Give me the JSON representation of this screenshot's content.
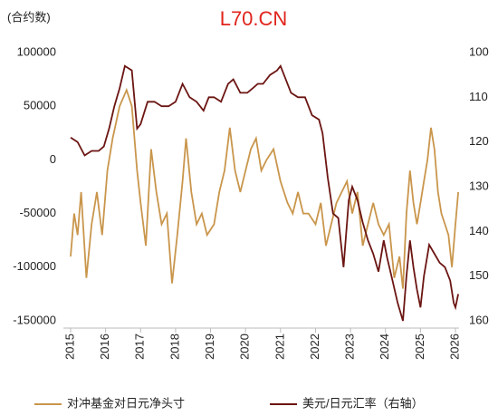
{
  "chart_data": {
    "type": "line",
    "watermark": "L70.CN",
    "y_label": "(合约数)",
    "xlim": [
      2015,
      2026.1
    ],
    "xticks": [
      2015,
      2016,
      2017,
      2018,
      2019,
      2020,
      2021,
      2022,
      2023,
      2024,
      2025,
      2026
    ],
    "ylim": [
      -150000,
      100000
    ],
    "yticks": [
      -150000,
      -100000,
      -50000,
      0,
      50000,
      100000
    ],
    "y2lim": [
      100,
      160
    ],
    "y2ticks": [
      100,
      110,
      120,
      130,
      140,
      150,
      160
    ],
    "y2_inverted": true,
    "legend": "bottom",
    "series": [
      {
        "name": "对冲基金对日元净头寸",
        "color": "#c9964c",
        "x": [
          2015.0,
          2015.1,
          2015.2,
          2015.3,
          2015.45,
          2015.6,
          2015.75,
          2015.9,
          2016.05,
          2016.2,
          2016.4,
          2016.6,
          2016.75,
          2016.9,
          2017.0,
          2017.15,
          2017.3,
          2017.45,
          2017.6,
          2017.75,
          2017.9,
          2018.05,
          2018.2,
          2018.3,
          2018.45,
          2018.6,
          2018.75,
          2018.9,
          2019.1,
          2019.25,
          2019.4,
          2019.55,
          2019.7,
          2019.85,
          2020.0,
          2020.15,
          2020.3,
          2020.45,
          2020.6,
          2020.8,
          2021.0,
          2021.2,
          2021.35,
          2021.5,
          2021.65,
          2021.8,
          2022.0,
          2022.15,
          2022.3,
          2022.45,
          2022.6,
          2022.75,
          2022.9,
          2023.05,
          2023.2,
          2023.35,
          2023.5,
          2023.65,
          2023.8,
          2023.95,
          2024.1,
          2024.25,
          2024.4,
          2024.5,
          2024.6,
          2024.7,
          2024.8,
          2024.9,
          2025.0,
          2025.1,
          2025.2,
          2025.3,
          2025.4,
          2025.5,
          2025.6,
          2025.7,
          2025.8,
          2025.9,
          2026.0,
          2026.08
        ],
        "values": [
          -90000,
          -50000,
          -70000,
          -30000,
          -110000,
          -60000,
          -30000,
          -70000,
          -10000,
          20000,
          50000,
          65000,
          50000,
          -10000,
          -40000,
          -80000,
          10000,
          -30000,
          -60000,
          -50000,
          -115000,
          -70000,
          -20000,
          20000,
          -30000,
          -60000,
          -50000,
          -70000,
          -60000,
          -30000,
          -10000,
          30000,
          -10000,
          -30000,
          -10000,
          10000,
          20000,
          -10000,
          0,
          10000,
          -20000,
          -40000,
          -50000,
          -30000,
          -50000,
          -50000,
          -60000,
          -40000,
          -80000,
          -60000,
          -40000,
          -30000,
          -20000,
          -50000,
          -30000,
          -80000,
          -60000,
          -40000,
          -60000,
          -70000,
          -60000,
          -110000,
          -90000,
          -120000,
          -50000,
          -10000,
          -40000,
          -60000,
          -40000,
          -20000,
          0,
          30000,
          10000,
          -30000,
          -50000,
          -60000,
          -70000,
          -100000,
          -60000,
          -30000
        ]
      },
      {
        "name": "美元/日元汇率（右轴）",
        "color": "#6b1512",
        "axis": "y2",
        "x": [
          2015.0,
          2015.2,
          2015.4,
          2015.6,
          2015.8,
          2015.95,
          2016.1,
          2016.25,
          2016.4,
          2016.55,
          2016.75,
          2016.9,
          2017.0,
          2017.2,
          2017.4,
          2017.6,
          2017.8,
          2018.0,
          2018.2,
          2018.4,
          2018.6,
          2018.8,
          2018.95,
          2019.1,
          2019.3,
          2019.5,
          2019.65,
          2019.85,
          2020.05,
          2020.2,
          2020.35,
          2020.5,
          2020.7,
          2020.9,
          2021.0,
          2021.15,
          2021.3,
          2021.5,
          2021.7,
          2021.9,
          2022.1,
          2022.2,
          2022.35,
          2022.5,
          2022.65,
          2022.8,
          2022.95,
          2023.05,
          2023.2,
          2023.35,
          2023.5,
          2023.65,
          2023.8,
          2023.95,
          2024.05,
          2024.2,
          2024.35,
          2024.5,
          2024.6,
          2024.7,
          2024.8,
          2024.9,
          2025.0,
          2025.1,
          2025.25,
          2025.4,
          2025.55,
          2025.7,
          2025.85,
          2025.95,
          2026.0,
          2026.08
        ],
        "values": [
          119,
          120,
          123,
          122,
          122,
          121,
          117,
          112,
          108,
          103,
          104,
          117,
          116,
          111,
          111,
          112,
          112,
          111,
          107,
          110,
          111,
          113,
          110,
          110,
          111,
          107,
          106,
          109,
          109,
          108,
          107,
          107,
          105,
          104,
          103,
          106,
          109,
          110,
          110,
          114,
          115,
          118,
          128,
          136,
          137,
          148,
          133,
          130,
          133,
          138,
          142,
          145,
          149,
          142,
          146,
          151,
          156,
          160,
          150,
          142,
          148,
          153,
          157,
          150,
          143,
          145,
          147,
          148,
          151,
          156,
          157,
          154
        ]
      }
    ]
  }
}
